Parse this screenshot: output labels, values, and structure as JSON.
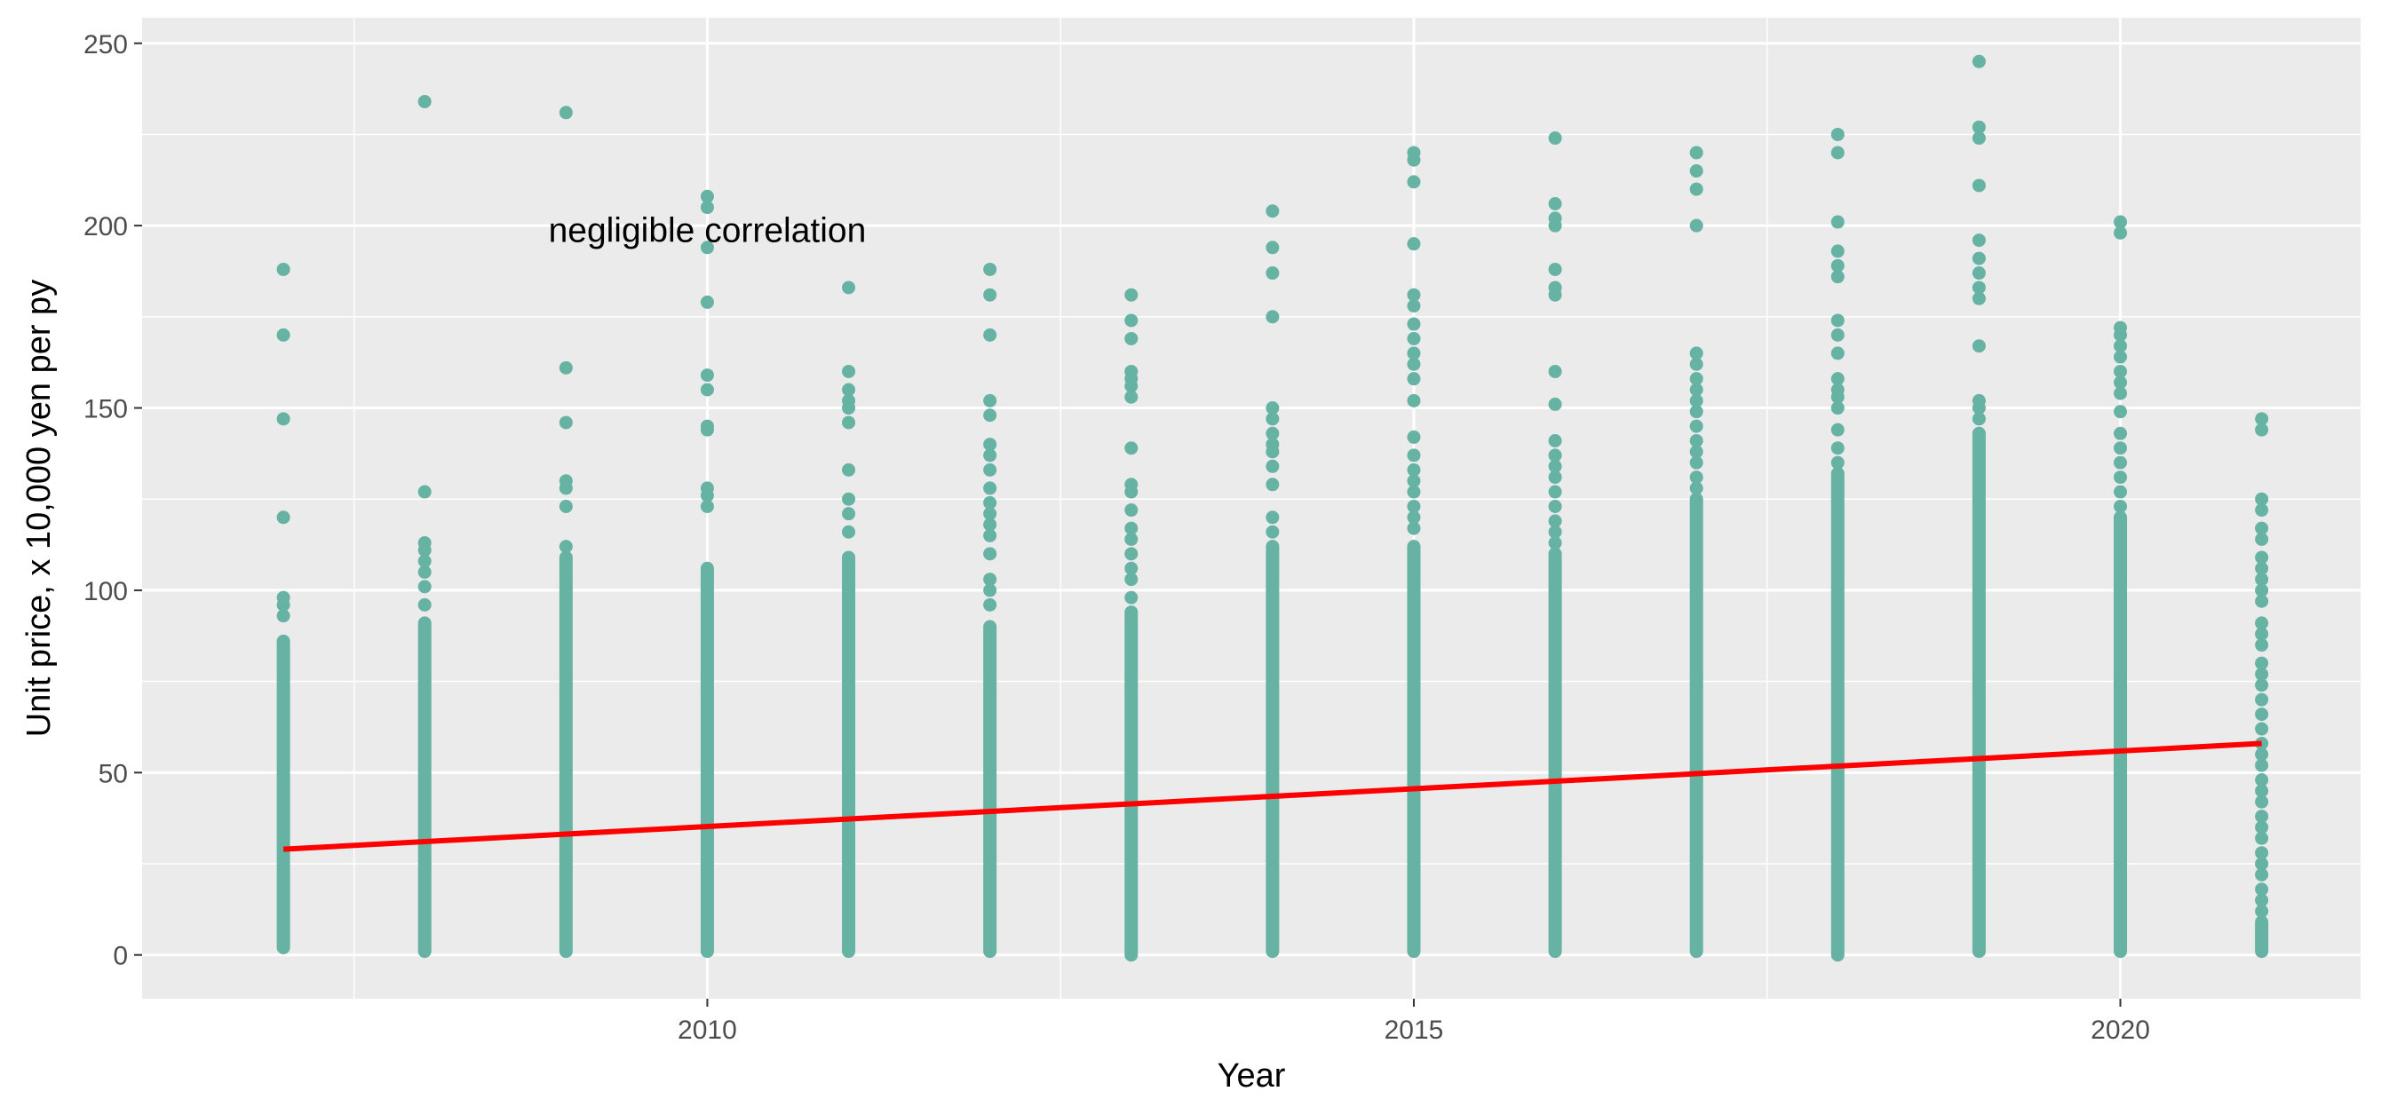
{
  "chart_data": {
    "type": "scatter",
    "title": "",
    "xlabel": "Year",
    "ylabel": "Unit price, x 10,000 yen per py",
    "xlim": [
      2006.0,
      2021.7
    ],
    "ylim": [
      -12,
      257
    ],
    "x_ticks": [
      2010,
      2015,
      2020
    ],
    "x_tick_labels": [
      "2010",
      "2015",
      "2020"
    ],
    "y_ticks": [
      0,
      50,
      100,
      150,
      200,
      250
    ],
    "y_tick_labels": [
      "0",
      "50",
      "100",
      "150",
      "200",
      "250"
    ],
    "grid": true,
    "legend": "none",
    "point_color": "#66b2a3",
    "line_color": "#ff0000",
    "panel_background": "#ebebeb",
    "annotation": {
      "text": "negligible correlation",
      "x": 2010.0,
      "y": 199
    },
    "trend_line": {
      "x": [
        2007,
        2021
      ],
      "y": [
        29,
        58
      ]
    },
    "columns": [
      {
        "year": 2007,
        "dense_range": [
          2,
          86
        ],
        "outliers": [
          93,
          96,
          98,
          120,
          147,
          170,
          188
        ]
      },
      {
        "year": 2008,
        "dense_range": [
          1,
          91
        ],
        "outliers": [
          96,
          101,
          105,
          108,
          111,
          113,
          127,
          234
        ]
      },
      {
        "year": 2009,
        "dense_range": [
          1,
          109
        ],
        "outliers": [
          112,
          123,
          128,
          130,
          146,
          161,
          231
        ]
      },
      {
        "year": 2010,
        "dense_range": [
          1,
          106
        ],
        "outliers": [
          123,
          126,
          128,
          144,
          145,
          155,
          159,
          179,
          194,
          205,
          208
        ]
      },
      {
        "year": 2011,
        "dense_range": [
          1,
          109
        ],
        "outliers": [
          116,
          121,
          125,
          133,
          146,
          150,
          152,
          155,
          160,
          183
        ]
      },
      {
        "year": 2012,
        "dense_range": [
          1,
          90
        ],
        "outliers": [
          96,
          100,
          103,
          110,
          115,
          118,
          121,
          124,
          128,
          133,
          137,
          140,
          148,
          152,
          170,
          181,
          188
        ]
      },
      {
        "year": 2013,
        "dense_range": [
          0,
          94
        ],
        "outliers": [
          98,
          103,
          106,
          110,
          114,
          117,
          122,
          127,
          129,
          139,
          153,
          156,
          158,
          160,
          169,
          174,
          181
        ]
      },
      {
        "year": 2014,
        "dense_range": [
          1,
          112
        ],
        "outliers": [
          116,
          120,
          129,
          134,
          138,
          140,
          143,
          147,
          150,
          175,
          187,
          194,
          204
        ]
      },
      {
        "year": 2015,
        "dense_range": [
          1,
          112
        ],
        "outliers": [
          117,
          120,
          123,
          127,
          130,
          133,
          137,
          142,
          152,
          158,
          162,
          165,
          169,
          173,
          178,
          181,
          195,
          212,
          218,
          220
        ]
      },
      {
        "year": 2016,
        "dense_range": [
          1,
          110
        ],
        "outliers": [
          113,
          116,
          119,
          123,
          127,
          131,
          134,
          137,
          141,
          151,
          160,
          181,
          183,
          188,
          200,
          202,
          206,
          224
        ]
      },
      {
        "year": 2017,
        "dense_range": [
          1,
          125
        ],
        "outliers": [
          128,
          131,
          135,
          138,
          141,
          145,
          149,
          152,
          155,
          158,
          162,
          165,
          200,
          210,
          215,
          220
        ]
      },
      {
        "year": 2018,
        "dense_range": [
          0,
          132
        ],
        "outliers": [
          135,
          139,
          144,
          150,
          153,
          155,
          158,
          165,
          170,
          174,
          186,
          189,
          193,
          201,
          220,
          225
        ]
      },
      {
        "year": 2019,
        "dense_range": [
          1,
          143
        ],
        "outliers": [
          147,
          150,
          152,
          167,
          180,
          183,
          187,
          191,
          196,
          211,
          224,
          227,
          245
        ]
      },
      {
        "year": 2020,
        "dense_range": [
          1,
          120
        ],
        "outliers": [
          123,
          127,
          131,
          135,
          139,
          143,
          149,
          154,
          157,
          160,
          164,
          167,
          170,
          172,
          198,
          201
        ]
      },
      {
        "year": 2021,
        "dense_range": [
          1,
          9
        ],
        "outliers": [
          12,
          15,
          18,
          22,
          25,
          28,
          32,
          35,
          38,
          42,
          45,
          48,
          52,
          55,
          58,
          62,
          66,
          70,
          74,
          77,
          80,
          85,
          88,
          91,
          97,
          100,
          103,
          106,
          109,
          114,
          117,
          122,
          125,
          144,
          147
        ]
      }
    ]
  }
}
